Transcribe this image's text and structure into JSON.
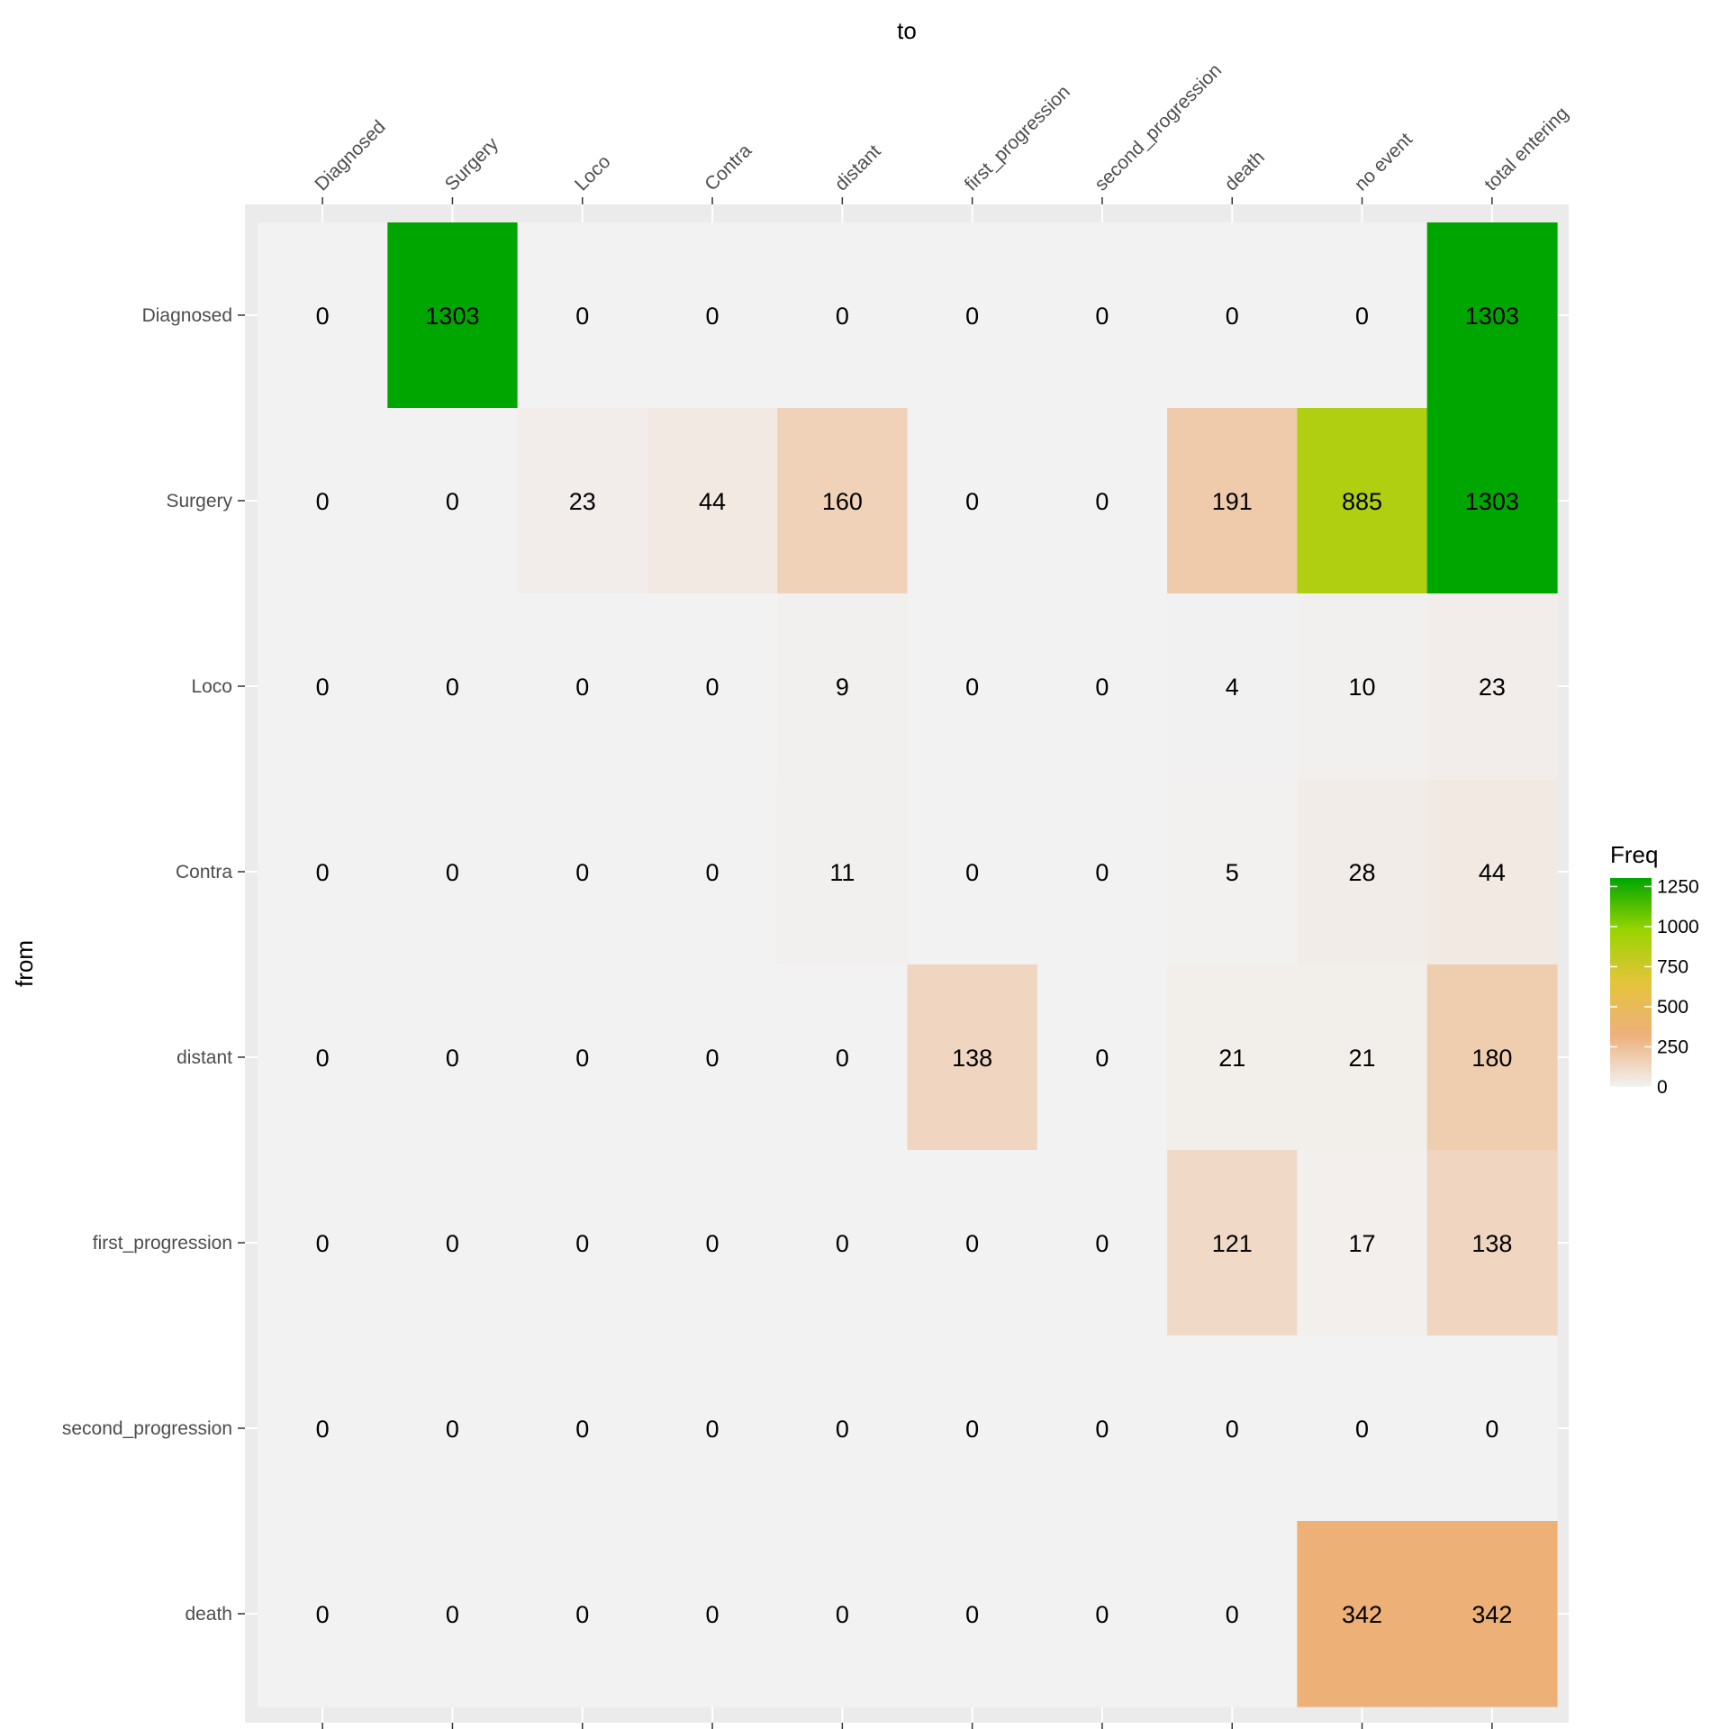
{
  "chart_data": {
    "type": "heatmap",
    "xlabel": "to",
    "ylabel": "from",
    "x_categories": [
      "Diagnosed",
      "Surgery",
      "Loco",
      "Contra",
      "distant",
      "first_progression",
      "second_progression",
      "death",
      "no event",
      "total entering"
    ],
    "y_categories": [
      "Diagnosed",
      "Surgery",
      "Loco",
      "Contra",
      "distant",
      "first_progression",
      "second_progression",
      "death"
    ],
    "values": [
      [
        0,
        1303,
        0,
        0,
        0,
        0,
        0,
        0,
        0,
        1303
      ],
      [
        0,
        0,
        23,
        44,
        160,
        0,
        0,
        191,
        885,
        1303
      ],
      [
        0,
        0,
        0,
        0,
        9,
        0,
        0,
        4,
        10,
        23
      ],
      [
        0,
        0,
        0,
        0,
        11,
        0,
        0,
        5,
        28,
        44
      ],
      [
        0,
        0,
        0,
        0,
        0,
        138,
        0,
        21,
        21,
        180
      ],
      [
        0,
        0,
        0,
        0,
        0,
        0,
        0,
        121,
        17,
        138
      ],
      [
        0,
        0,
        0,
        0,
        0,
        0,
        0,
        0,
        0,
        0
      ],
      [
        0,
        0,
        0,
        0,
        0,
        0,
        0,
        0,
        342,
        342
      ]
    ],
    "x_axis_position": "top",
    "legend": {
      "title": "Freq",
      "position": "right",
      "ticks": [
        0,
        250,
        500,
        750,
        1000,
        1250
      ],
      "range": [
        0,
        1303
      ],
      "gradient": [
        "#f2f2f2",
        "#edb07b",
        "#e5c43a",
        "#99d400",
        "#00a600"
      ]
    },
    "colors": {
      "panel_background": "#ebebeb",
      "tile_zero": "#f2f2f2",
      "grid_line": "#ffffff"
    }
  }
}
